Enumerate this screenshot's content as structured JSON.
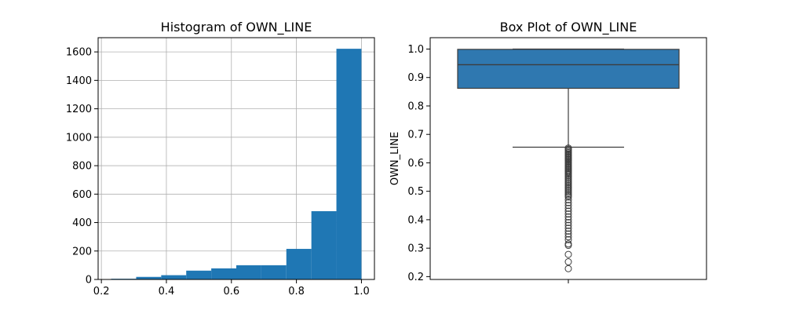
{
  "chart_data": [
    {
      "type": "bar",
      "title": "Histogram of OWN_LINE",
      "xlabel": "",
      "ylabel": "",
      "xlim": [
        0.19,
        1.04
      ],
      "ylim": [
        0,
        1700
      ],
      "grid": true,
      "color": "#1f77b4",
      "xticks": [
        "0.2",
        "0.4",
        "0.6",
        "0.8",
        "1.0"
      ],
      "yticks": [
        "0",
        "200",
        "400",
        "600",
        "800",
        "1000",
        "1200",
        "1400",
        "1600"
      ],
      "bins": [
        {
          "x0": 0.23,
          "x1": 0.307,
          "count": 5
        },
        {
          "x0": 0.307,
          "x1": 0.384,
          "count": 18
        },
        {
          "x0": 0.384,
          "x1": 0.461,
          "count": 30
        },
        {
          "x0": 0.461,
          "x1": 0.538,
          "count": 62
        },
        {
          "x0": 0.538,
          "x1": 0.615,
          "count": 78
        },
        {
          "x0": 0.615,
          "x1": 0.692,
          "count": 100
        },
        {
          "x0": 0.692,
          "x1": 0.769,
          "count": 100
        },
        {
          "x0": 0.769,
          "x1": 0.846,
          "count": 215
        },
        {
          "x0": 0.846,
          "x1": 0.923,
          "count": 480
        },
        {
          "x0": 0.923,
          "x1": 1.0,
          "count": 1622
        }
      ]
    },
    {
      "type": "box",
      "title": "Box Plot of OWN_LINE",
      "xlabel": "",
      "ylabel": "OWN_LINE",
      "ylim": [
        0.19,
        1.04
      ],
      "grid": false,
      "color": "#2f78b0",
      "yticks": [
        "0.2",
        "0.3",
        "0.4",
        "0.5",
        "0.6",
        "0.7",
        "0.8",
        "0.9",
        "1.0"
      ],
      "stats": {
        "whisker_low": 0.655,
        "q1": 0.862,
        "median": 0.945,
        "q3": 0.999,
        "whisker_high": 1.0
      },
      "outliers": [
        0.652,
        0.648,
        0.644,
        0.64,
        0.636,
        0.632,
        0.628,
        0.624,
        0.62,
        0.616,
        0.612,
        0.608,
        0.604,
        0.6,
        0.596,
        0.592,
        0.588,
        0.584,
        0.58,
        0.576,
        0.572,
        0.568,
        0.564,
        0.56,
        0.555,
        0.55,
        0.545,
        0.54,
        0.535,
        0.53,
        0.525,
        0.52,
        0.515,
        0.51,
        0.505,
        0.5,
        0.495,
        0.49,
        0.485,
        0.48,
        0.47,
        0.46,
        0.45,
        0.44,
        0.43,
        0.42,
        0.41,
        0.4,
        0.39,
        0.38,
        0.37,
        0.36,
        0.35,
        0.34,
        0.33,
        0.315,
        0.31,
        0.278,
        0.252,
        0.228
      ]
    }
  ]
}
